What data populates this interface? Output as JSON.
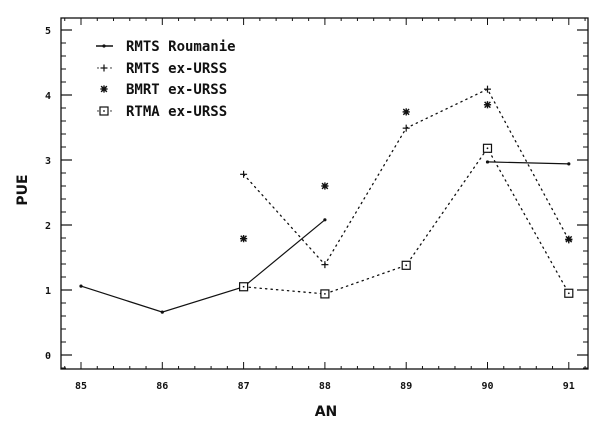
{
  "chart_data": {
    "type": "line",
    "title": "",
    "xlabel": "AN",
    "ylabel": "PUE",
    "x": [
      85,
      86,
      87,
      88,
      89,
      90,
      91
    ],
    "x_tick_labels": [
      "85",
      "86",
      "87",
      "88",
      "89",
      "90",
      "91"
    ],
    "y_tick_labels": [
      "0",
      "1",
      "2",
      "3",
      "4",
      "5"
    ],
    "xlim": [
      84.75,
      91.25
    ],
    "ylim": [
      -0.2,
      5.2
    ],
    "grid": false,
    "legend_position": "upper left",
    "series": [
      {
        "name": "RMTS Roumanie",
        "line": "solid",
        "marker": "dot",
        "segments": [
          {
            "x": [
              85,
              86,
              87,
              88
            ],
            "y": [
              1.06,
              0.66,
              1.05,
              2.08
            ]
          },
          {
            "x": [
              90,
              91
            ],
            "y": [
              2.97,
              2.94
            ]
          }
        ]
      },
      {
        "name": "RMTS ex-URSS",
        "line": "dotted",
        "marker": "plus",
        "segments": [
          {
            "x": [
              87,
              88,
              89,
              90,
              91
            ],
            "y": [
              2.78,
              1.39,
              3.49,
              4.09,
              1.77
            ]
          }
        ]
      },
      {
        "name": "BMRT ex-URSS",
        "line": "none",
        "marker": "asterisk",
        "segments": [
          {
            "x": [
              87,
              88,
              89,
              90,
              91
            ],
            "y": [
              1.79,
              2.6,
              3.74,
              3.85,
              1.78
            ]
          }
        ]
      },
      {
        "name": "RTMA ex-URSS",
        "line": "dotted",
        "marker": "square",
        "segments": [
          {
            "x": [
              87,
              88,
              89,
              90,
              91
            ],
            "y": [
              1.05,
              0.94,
              1.38,
              3.18,
              0.95
            ]
          }
        ]
      }
    ]
  },
  "legend": {
    "items": [
      {
        "label": "RMTS Roumanie"
      },
      {
        "label": "RMTS ex-URSS"
      },
      {
        "label": "BMRT ex-URSS"
      },
      {
        "label": "RTMA ex-URSS"
      }
    ]
  },
  "colors": {
    "ink": "#111111",
    "background": "#ffffff"
  }
}
